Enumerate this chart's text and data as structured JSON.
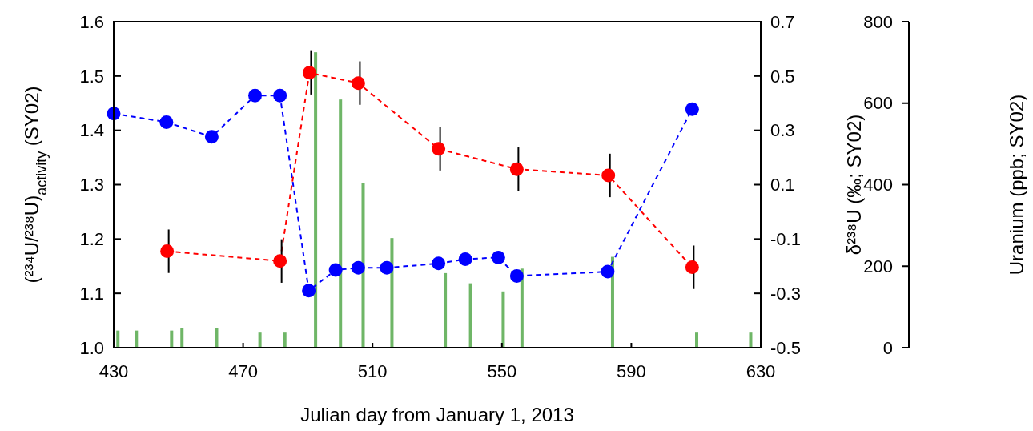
{
  "chart_data": {
    "type": "line",
    "xlabel": "Julian day from January 1, 2013",
    "ylabel": "(²³⁴U/²³⁸U)$_{activity}$ (SY02)",
    "y2label": "δ²³⁸U (‰; SY02)",
    "y3label": "Uranium (ppb; SY02)",
    "xlim": [
      430,
      630
    ],
    "xticks": [
      430,
      470,
      510,
      550,
      590,
      630
    ],
    "ylim": [
      1.0,
      1.6
    ],
    "yticks": [
      {
        "value": 1.0,
        "label": "1.0"
      },
      1.1,
      1.2,
      1.3,
      1.4,
      1.5,
      1.6
    ],
    "y2lim": [
      -0.5,
      0.7
    ],
    "y2ticks": [
      -0.5,
      -0.3,
      -0.1,
      0.1,
      0.3,
      0.5,
      0.7
    ],
    "y3lim": [
      0,
      800
    ],
    "y3ticks": [
      0,
      200,
      400,
      600,
      800
    ],
    "marker": "circle",
    "line_style": "dashed",
    "grid": false,
    "series": [
      {
        "type": "bar",
        "axis": "y3",
        "color": "#5fae57",
        "x": [
          431.3,
          437,
          447.9,
          451.1,
          461.8,
          475.2,
          482.9,
          492.4,
          500.1,
          507.1,
          516,
          532.5,
          540.3,
          550.4,
          556.2,
          584.2,
          610.2,
          626.9
        ],
        "values": [
          42,
          42,
          42,
          48,
          48,
          37,
          37,
          725,
          609,
          404,
          269,
          183,
          158,
          138,
          194,
          223,
          37,
          37
        ]
      },
      {
        "axis": "y",
        "color": "#0000ff",
        "x": [
          430,
          446.3,
          460.3,
          473.7,
          481.4,
          490.3,
          498.6,
          505.6,
          514.4,
          530.4,
          538.7,
          548.9,
          554.6,
          582.7,
          608.8
        ],
        "values": [
          1.431,
          1.415,
          1.388,
          1.464,
          1.464,
          1.105,
          1.143,
          1.147,
          1.147,
          1.155,
          1.163,
          1.166,
          1.132,
          1.14,
          1.439
        ]
      },
      {
        "axis": "y2",
        "color": "#ff0000",
        "x": [
          446.5,
          481.4,
          490.5,
          505.6,
          530.4,
          554.6,
          582.9,
          608.8
        ],
        "values": [
          -0.145,
          -0.181,
          0.512,
          0.474,
          0.232,
          0.157,
          0.134,
          -0.204
        ],
        "errors": [
          0.08,
          0.08,
          0.08,
          0.08,
          0.08,
          0.08,
          0.08,
          0.08
        ]
      }
    ]
  }
}
